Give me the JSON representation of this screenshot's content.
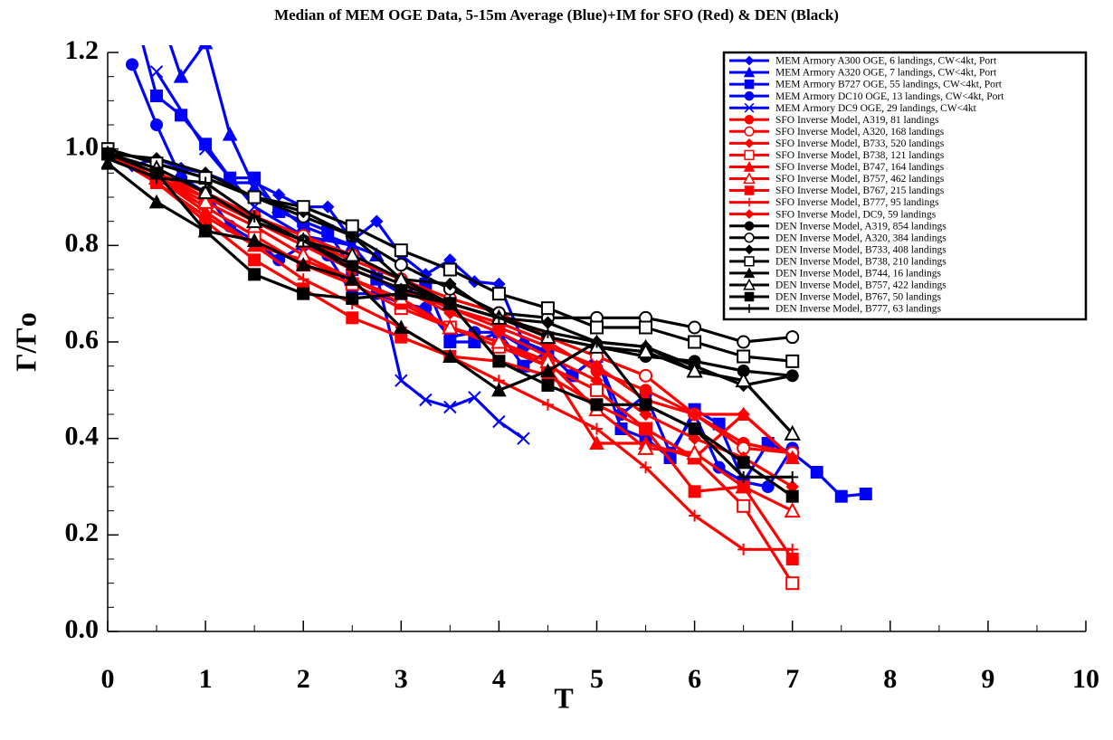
{
  "chart_data": {
    "type": "line",
    "title": "Median of MEM OGE Data, 5-15m Average (Blue)+IM for SFO (Red) & DEN (Black)",
    "xlabel": "T",
    "ylabel": "Γ/Γo",
    "xlim": [
      0,
      10
    ],
    "ylim": [
      0,
      1.2
    ],
    "xticks": [
      0,
      1,
      2,
      3,
      4,
      5,
      6,
      7,
      8,
      9,
      10
    ],
    "yticks": [
      {
        "value": 0,
        "label": "0.0"
      },
      {
        "value": 0.2,
        "label": "0.2"
      },
      {
        "value": 0.4,
        "label": "0.4"
      },
      {
        "value": 0.6,
        "label": "0.6"
      },
      {
        "value": 0.8,
        "label": "0.8"
      },
      {
        "value": 1,
        "label": "1.0"
      },
      {
        "value": 1.2,
        "label": "1.2"
      }
    ],
    "legend": "upper right",
    "x": [
      0,
      0.5,
      1,
      1.5,
      2,
      2.5,
      3,
      3.5,
      4,
      4.5,
      5,
      5.5,
      6,
      6.5,
      7
    ],
    "series": [
      {
        "name": "MEM Armory A300 OGE, 6 landings, CW<4kt, Port",
        "color": "#0000ff",
        "marker": "diamond",
        "x": [
          0.25,
          0.5,
          0.75,
          1,
          1.25,
          1.5,
          1.75,
          2,
          2.25,
          2.5,
          2.75,
          3,
          3.25,
          3.5,
          3.75,
          4,
          4.25,
          4.5
        ],
        "values": [
          0.965,
          0.98,
          0.96,
          0.95,
          0.93,
          0.93,
          0.905,
          0.88,
          0.88,
          0.81,
          0.85,
          0.78,
          0.74,
          0.77,
          0.725,
          0.72,
          0.6,
          0.58
        ]
      },
      {
        "name": "MEM Armory A320 OGE, 7 landings, CW<4kt, Port",
        "color": "#0000ff",
        "marker": "triangle",
        "x": [
          0.5,
          0.75,
          1,
          1.25,
          1.5,
          1.75,
          2,
          2.25,
          2.5,
          2.75
        ],
        "values": [
          1.3,
          1.15,
          1.22,
          1.03,
          0.92,
          0.88,
          0.84,
          0.82,
          0.8,
          0.78
        ]
      },
      {
        "name": "MEM Armory B727 OGE, 55 landings, CW<4kt, Port",
        "color": "#0000ff",
        "marker": "square",
        "x": [
          0.25,
          0.5,
          0.75,
          1,
          1.25,
          1.5,
          1.75,
          2,
          2.25,
          2.5,
          2.75,
          3,
          3.25,
          3.5,
          3.75,
          4,
          4.25,
          4.5,
          4.75,
          5,
          5.25,
          5.5,
          5.75,
          6,
          6.25,
          6.5,
          6.75,
          7,
          7.25,
          7.5,
          7.75
        ],
        "values": [
          1.3,
          1.11,
          1.07,
          1.01,
          0.94,
          0.94,
          0.87,
          0.85,
          0.83,
          0.75,
          0.73,
          0.7,
          0.72,
          0.6,
          0.6,
          0.62,
          0.55,
          0.58,
          0.53,
          0.57,
          0.42,
          0.4,
          0.36,
          0.46,
          0.43,
          0.31,
          0.39,
          0.37,
          0.33,
          0.28,
          0.285
        ]
      },
      {
        "name": "MEM Armory DC10 OGE, 13 landings, CW<4kt, Port",
        "color": "#0000ff",
        "marker": "circle",
        "x": [
          0.25,
          0.5,
          0.75,
          1,
          1.25,
          1.5,
          1.75,
          2,
          2.25,
          2.5,
          2.75,
          3,
          3.25,
          3.5,
          3.75,
          4,
          4.25,
          4.5,
          4.75,
          5,
          5.25,
          5.5,
          5.75,
          6,
          6.25,
          6.5,
          6.75,
          7
        ],
        "values": [
          1.175,
          1.05,
          0.94,
          0.91,
          0.84,
          0.81,
          0.77,
          0.8,
          0.78,
          0.7,
          0.7,
          0.68,
          0.67,
          0.61,
          0.62,
          0.62,
          0.59,
          0.58,
          0.53,
          0.57,
          0.45,
          0.49,
          0.37,
          0.45,
          0.34,
          0.31,
          0.3,
          0.38
        ]
      },
      {
        "name": "MEM Armory DC9 OGE, 29 landings, CW<4kt",
        "color": "#0000ff",
        "marker": "x",
        "x": [
          0.5,
          1,
          1.5,
          2,
          2.5,
          2.75,
          3,
          3.25,
          3.5,
          3.75,
          4,
          4.25
        ],
        "values": [
          1.16,
          1.0,
          0.88,
          0.82,
          0.8,
          0.74,
          0.52,
          0.48,
          0.465,
          0.485,
          0.435,
          0.4
        ]
      },
      {
        "name": "SFO Inverse Model, A319, 81 landings",
        "color": "#ff0000",
        "marker": "circle",
        "values": [
          0.99,
          0.95,
          0.91,
          0.86,
          0.82,
          0.75,
          0.71,
          0.67,
          0.64,
          0.6,
          0.54,
          0.5,
          0.45,
          0.39,
          0.37
        ]
      },
      {
        "name": "SFO Inverse Model, A320, 168 landings",
        "color": "#ff0000",
        "marker": "circle-open",
        "values": [
          0.99,
          0.94,
          0.9,
          0.86,
          0.82,
          0.78,
          0.73,
          0.69,
          0.66,
          0.61,
          0.57,
          0.53,
          0.45,
          0.38,
          0.37
        ]
      },
      {
        "name": "SFO Inverse Model, B733, 520 landings",
        "color": "#ff0000",
        "marker": "diamond",
        "values": [
          0.99,
          0.95,
          0.9,
          0.85,
          0.8,
          0.75,
          0.71,
          0.66,
          0.62,
          0.57,
          0.52,
          0.45,
          0.4,
          0.36,
          0.3
        ]
      },
      {
        "name": "SFO Inverse Model, B738, 121 landings",
        "color": "#ff0000",
        "marker": "square-open",
        "values": [
          0.99,
          0.94,
          0.88,
          0.82,
          0.76,
          0.72,
          0.67,
          0.63,
          0.59,
          0.55,
          0.5,
          0.42,
          0.36,
          0.26,
          0.1
        ]
      },
      {
        "name": "SFO Inverse Model, B747, 164 landings",
        "color": "#ff0000",
        "marker": "triangle",
        "values": [
          0.99,
          0.94,
          0.87,
          0.8,
          0.77,
          0.73,
          0.68,
          0.63,
          0.6,
          0.55,
          0.39,
          0.39,
          0.36,
          0.45,
          0.36
        ]
      },
      {
        "name": "SFO Inverse Model, B757, 462 landings",
        "color": "#ff0000",
        "marker": "triangle-open",
        "values": [
          0.99,
          0.94,
          0.89,
          0.84,
          0.78,
          0.73,
          0.69,
          0.63,
          0.6,
          0.56,
          0.46,
          0.38,
          0.37,
          0.3,
          0.25
        ]
      },
      {
        "name": "SFO Inverse Model, B767, 215 landings",
        "color": "#ff0000",
        "marker": "square",
        "values": [
          0.99,
          0.93,
          0.85,
          0.77,
          0.71,
          0.65,
          0.61,
          0.57,
          0.56,
          0.53,
          0.47,
          0.42,
          0.29,
          0.3,
          0.15
        ]
      },
      {
        "name": "SFO Inverse Model, B777, 95 landings",
        "color": "#ff0000",
        "marker": "plus",
        "values": [
          0.99,
          0.93,
          0.86,
          0.8,
          0.73,
          0.68,
          0.63,
          0.57,
          0.52,
          0.47,
          0.42,
          0.34,
          0.24,
          0.17,
          0.17
        ]
      },
      {
        "name": "SFO Inverse Model, DC9, 59 landings",
        "color": "#ff0000",
        "marker": "diamond",
        "values": [
          0.99,
          0.95,
          0.91,
          0.86,
          0.81,
          0.77,
          0.73,
          0.67,
          0.63,
          0.59,
          0.55,
          0.48,
          0.45,
          0.45,
          0.36
        ]
      },
      {
        "name": "DEN Inverse Model, A319, 854 landings",
        "color": "#000000",
        "marker": "circle",
        "values": [
          0.99,
          0.96,
          0.91,
          0.85,
          0.81,
          0.76,
          0.72,
          0.68,
          0.65,
          0.61,
          0.59,
          0.57,
          0.56,
          0.54,
          0.53
        ]
      },
      {
        "name": "DEN Inverse Model, A320, 384 landings",
        "color": "#000000",
        "marker": "circle-open",
        "values": [
          1.0,
          0.97,
          0.94,
          0.9,
          0.86,
          0.82,
          0.76,
          0.71,
          0.66,
          0.65,
          0.65,
          0.65,
          0.63,
          0.6,
          0.61
        ]
      },
      {
        "name": "DEN Inverse Model, B733, 408 landings",
        "color": "#000000",
        "marker": "diamond",
        "values": [
          0.99,
          0.98,
          0.95,
          0.9,
          0.87,
          0.82,
          0.73,
          0.72,
          0.65,
          0.64,
          0.6,
          0.59,
          0.55,
          0.51,
          0.53
        ]
      },
      {
        "name": "DEN Inverse Model, B738, 210 landings",
        "color": "#000000",
        "marker": "square-open",
        "values": [
          1.0,
          0.97,
          0.94,
          0.9,
          0.88,
          0.84,
          0.79,
          0.75,
          0.7,
          0.67,
          0.63,
          0.63,
          0.6,
          0.57,
          0.56
        ]
      },
      {
        "name": "DEN Inverse Model, B744, 16 landings",
        "color": "#000000",
        "marker": "triangle",
        "values": [
          0.97,
          0.89,
          0.83,
          0.81,
          0.76,
          0.73,
          0.63,
          0.57,
          0.5,
          0.54,
          0.6,
          0.59,
          0.54,
          0.52,
          0.41
        ]
      },
      {
        "name": "DEN Inverse Model, B757, 422 landings",
        "color": "#000000",
        "marker": "triangle-open",
        "values": [
          0.99,
          0.96,
          0.91,
          0.85,
          0.81,
          0.78,
          0.73,
          0.68,
          0.65,
          0.61,
          0.59,
          0.58,
          0.54,
          0.52,
          0.41
        ]
      },
      {
        "name": "DEN Inverse Model, B767, 50 landings",
        "color": "#000000",
        "marker": "square",
        "values": [
          0.99,
          0.95,
          0.83,
          0.74,
          0.7,
          0.69,
          0.7,
          0.68,
          0.56,
          0.51,
          0.47,
          0.47,
          0.42,
          0.35,
          0.28
        ]
      },
      {
        "name": "DEN Inverse Model, B777, 63 landings",
        "color": "#000000",
        "marker": "plus",
        "values": [
          0.98,
          0.94,
          0.93,
          0.86,
          0.81,
          0.75,
          0.71,
          0.68,
          0.65,
          0.62,
          0.6,
          0.47,
          0.42,
          0.32,
          0.32
        ]
      }
    ]
  }
}
